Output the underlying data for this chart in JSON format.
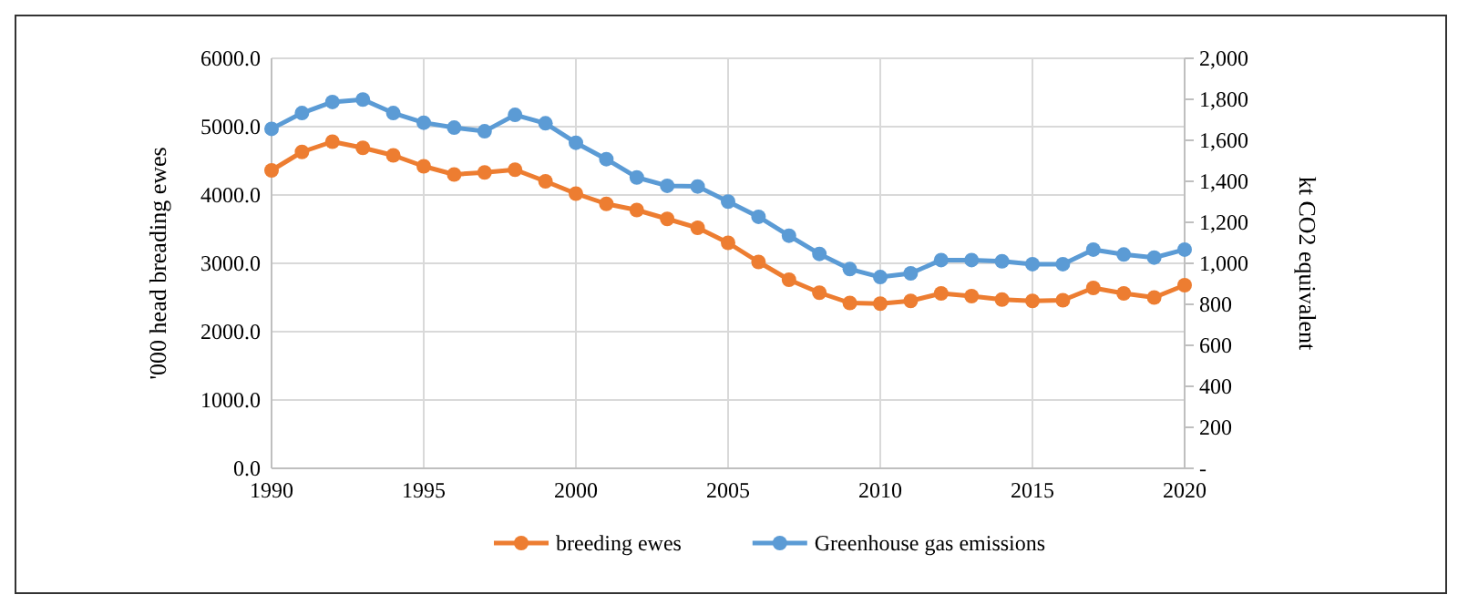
{
  "chart_data": {
    "type": "line",
    "x": [
      1990,
      1991,
      1992,
      1993,
      1994,
      1995,
      1996,
      1997,
      1998,
      1999,
      2000,
      2001,
      2002,
      2003,
      2004,
      2005,
      2006,
      2007,
      2008,
      2009,
      2010,
      2011,
      2012,
      2013,
      2014,
      2015,
      2016,
      2017,
      2018,
      2019,
      2020
    ],
    "series": [
      {
        "name": "breeding ewes",
        "color": "#ed7d31",
        "values": [
          4360,
          4630,
          4780,
          4690,
          4580,
          4420,
          4300,
          4330,
          4370,
          4200,
          4020,
          3870,
          3780,
          3650,
          3520,
          3300,
          3020,
          2760,
          2570,
          2420,
          2410,
          2450,
          2560,
          2520,
          2470,
          2450,
          2460,
          2640,
          2560,
          2500,
          2680
        ]
      },
      {
        "name": "Greenhouse gas emissions",
        "color": "#5b9bd5",
        "axis": "y2",
        "values": [
          1656,
          1733,
          1787,
          1799,
          1733,
          1686,
          1662,
          1644,
          1724,
          1683,
          1588,
          1508,
          1419,
          1378,
          1375,
          1301,
          1227,
          1135,
          1046,
          972,
          933,
          951,
          1016,
          1016,
          1010,
          996,
          996,
          1067,
          1043,
          1028,
          1067
        ]
      }
    ],
    "xlim": [
      1990,
      2020
    ],
    "xticks": [
      1990,
      1995,
      2000,
      2005,
      2010,
      2015,
      2020
    ],
    "ylim": [
      0,
      6000
    ],
    "yticks": [
      {
        "value": 0,
        "label": "0.0"
      },
      {
        "value": 1000,
        "label": "1000.0"
      },
      {
        "value": 2000,
        "label": "2000.0"
      },
      {
        "value": 3000,
        "label": "3000.0"
      },
      {
        "value": 4000,
        "label": "4000.0"
      },
      {
        "value": 5000,
        "label": "5000.0"
      },
      {
        "value": 6000,
        "label": "6000.0"
      }
    ],
    "y2lim": [
      0,
      2000
    ],
    "y2ticks": [
      {
        "value": 0,
        "label": "-"
      },
      {
        "value": 200,
        "label": "200"
      },
      {
        "value": 400,
        "label": "400"
      },
      {
        "value": 600,
        "label": "600"
      },
      {
        "value": 800,
        "label": "800"
      },
      {
        "value": 1000,
        "label": "1,000"
      },
      {
        "value": 1200,
        "label": "1,200"
      },
      {
        "value": 1400,
        "label": "1,400"
      },
      {
        "value": 1600,
        "label": "1,600"
      },
      {
        "value": 1800,
        "label": "1,800"
      },
      {
        "value": 2000,
        "label": "2,000"
      }
    ],
    "ylabel": "'000 head breading ewes",
    "y2label": "kt CO2 equivalent",
    "grid": true,
    "legend": "bottom",
    "marker": "circle",
    "line_style": "solid"
  }
}
